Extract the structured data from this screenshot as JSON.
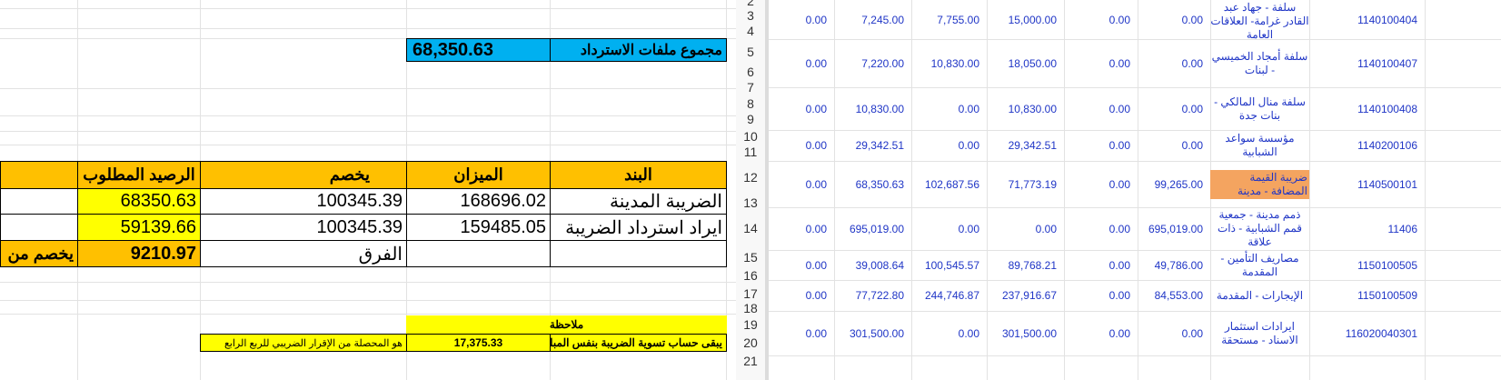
{
  "summary": {
    "label": "مجموع ملفات الاسترداد",
    "value": "68,350.63"
  },
  "recon_table": {
    "headers": {
      "item": "البند",
      "balance": "الميزان",
      "deduct": "يخصم",
      "required": "الرصيد المطلوب"
    },
    "rows": [
      {
        "item": "الضريبة المدينة",
        "balance": "168696.02",
        "deduct": "100345.39",
        "required": "68350.63"
      },
      {
        "item": "ايراد استرداد الضريبة",
        "balance": "159485.05",
        "deduct": "100345.39",
        "required": "59139.66"
      }
    ],
    "diff_label": "الفرق",
    "diff_value": "9210.97",
    "cut_text": "يخصم من"
  },
  "note": {
    "title": "ملاحظة",
    "text1": "يبقى حساب تسوية الضريبة بنفس المبلغ",
    "amount": "17,375.33",
    "text2": "هو المحصلة من الإقرار الضريبي للربع الرابع"
  },
  "row_numbers": [
    "2",
    "3",
    "4",
    "5",
    "6",
    "7",
    "8",
    "9",
    "10",
    "11",
    "12",
    "13",
    "14",
    "15",
    "16",
    "17",
    "18",
    "19",
    "20",
    "21"
  ],
  "accounts": [
    {
      "code": "1140100404",
      "name": "سلفة - جهاد عبد القادر غرامة- العلاقات العامة",
      "c1": "0.00",
      "c2": "0.00",
      "c3": "15,000.00",
      "c4": "7,755.00",
      "c5": "7,245.00",
      "c6": "0.00"
    },
    {
      "code": "1140100407",
      "name": "سلفة أمجاد الخميسي - لبنات",
      "c1": "0.00",
      "c2": "0.00",
      "c3": "18,050.00",
      "c4": "10,830.00",
      "c5": "7,220.00",
      "c6": "0.00"
    },
    {
      "code": "1140100408",
      "name": "سلفة منال المالكي - بنات جدة",
      "c1": "0.00",
      "c2": "0.00",
      "c3": "10,830.00",
      "c4": "0.00",
      "c5": "10,830.00",
      "c6": "0.00"
    },
    {
      "code": "1140200106",
      "name": "مؤسسة سواعد الشبابية",
      "c1": "0.00",
      "c2": "0.00",
      "c3": "29,342.51",
      "c4": "0.00",
      "c5": "29,342.51",
      "c6": "0.00"
    },
    {
      "code": "1140500101",
      "name": "ضريبة القيمة المضافة - مدينة",
      "c1": "99,265.00",
      "c2": "0.00",
      "c3": "71,773.19",
      "c4": "102,687.56",
      "c5": "68,350.63",
      "c6": "0.00"
    },
    {
      "code": "11406",
      "name": "ذمم مدينة - جمعية قمم الشبابية - ذات علاقة",
      "c1": "695,019.00",
      "c2": "0.00",
      "c3": "0.00",
      "c4": "0.00",
      "c5": "695,019.00",
      "c6": "0.00"
    },
    {
      "code": "1150100505",
      "name": "مصاريف التأمين - المقدمة",
      "c1": "49,786.00",
      "c2": "0.00",
      "c3": "89,768.21",
      "c4": "100,545.57",
      "c5": "39,008.64",
      "c6": "0.00"
    },
    {
      "code": "1150100509",
      "name": "الإيجارات - المقدمة",
      "c1": "84,553.00",
      "c2": "0.00",
      "c3": "237,916.67",
      "c4": "244,746.87",
      "c5": "77,722.80",
      "c6": "0.00"
    },
    {
      "code": "116020040301",
      "name": "ايرادات استثمار الاسناد - مستحقة",
      "c1": "0.00",
      "c2": "0.00",
      "c3": "301,500.00",
      "c4": "0.00",
      "c5": "301,500.00",
      "c6": "0.00"
    }
  ],
  "colors": {
    "orange": "#ffc000",
    "yellow": "#ffff00",
    "blue": "#00b0f0",
    "text_blue": "#1f35c6",
    "highlight": "#f4a460"
  }
}
